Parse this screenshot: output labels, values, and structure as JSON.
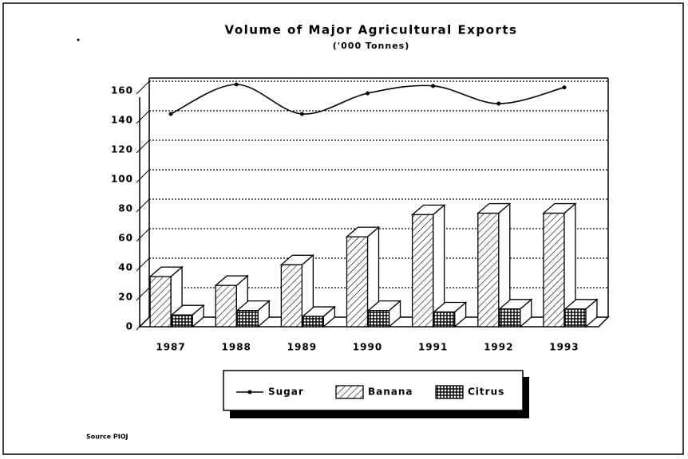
{
  "chart_data": {
    "type": "bar",
    "title": "Volume of Major Agricultural Exports",
    "subtitle": "('000 Tonnes)",
    "categories": [
      "1987",
      "1988",
      "1989",
      "1990",
      "1991",
      "1992",
      "1993"
    ],
    "series": [
      {
        "name": "Sugar",
        "type": "line",
        "color": "#000000",
        "values": [
          140,
          160,
          140,
          154,
          159,
          147,
          158
        ]
      },
      {
        "name": "Banana",
        "type": "bar",
        "color": "#000000",
        "pattern": "hatch",
        "values": [
          34,
          28,
          42,
          61,
          76,
          77,
          77
        ]
      },
      {
        "name": "Citrus",
        "type": "bar",
        "color": "#000000",
        "pattern": "grid",
        "values": [
          8,
          11,
          7,
          11,
          10,
          12,
          12
        ]
      }
    ],
    "ylim": [
      0,
      160
    ],
    "yticks": [
      0,
      20,
      40,
      60,
      80,
      100,
      120,
      140,
      160
    ],
    "grid": true,
    "legend": "bottom",
    "source": "Source PIOJ"
  }
}
